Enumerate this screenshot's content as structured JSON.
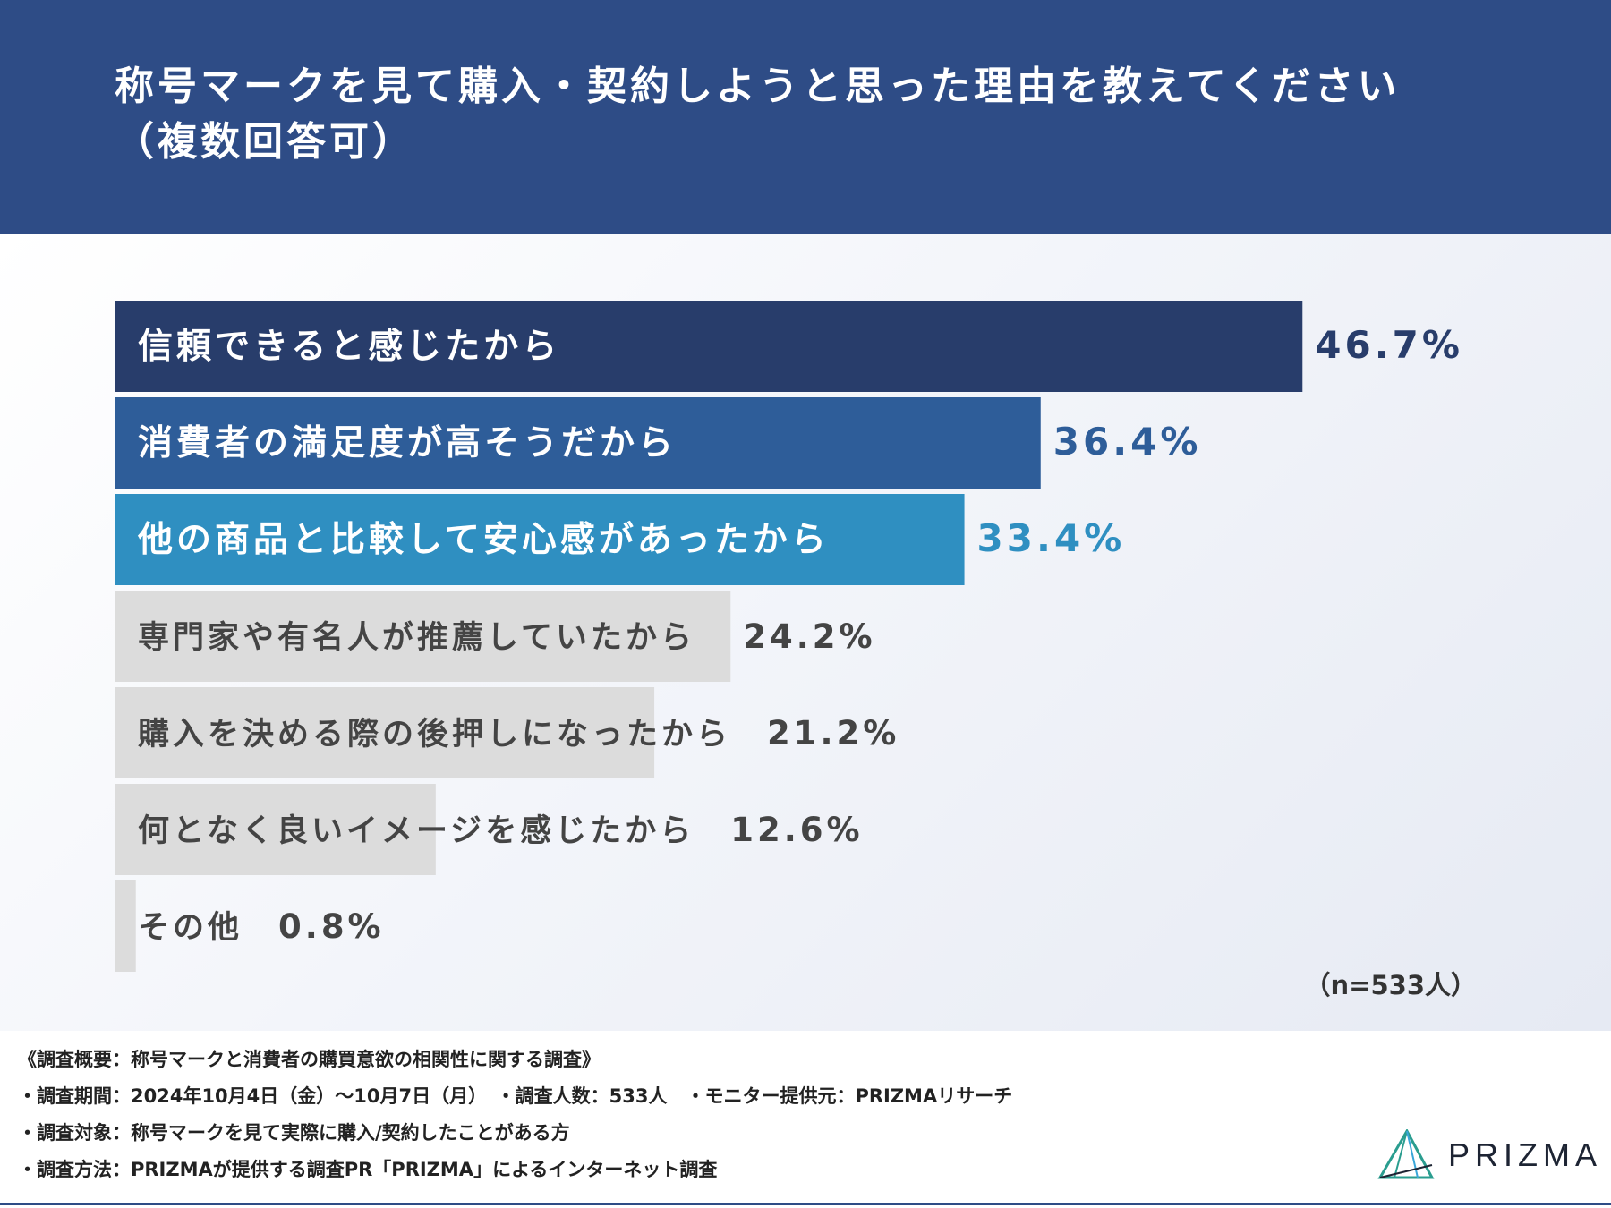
{
  "header": {
    "title": "称号マークを見て購入・契約しようと思った理由を教えてください\n（複数回答可）"
  },
  "chart_data": {
    "type": "bar",
    "orientation": "horizontal",
    "categories": [
      "信頼できると感じたから",
      "消費者の満足度が高そうだから",
      "他の商品と比較して安心感があったから",
      "専門家や有名人が推薦していたから",
      "購入を決める際の後押しになったから",
      "何となく良いイメージを感じたから",
      "その他"
    ],
    "values": [
      46.7,
      36.4,
      33.4,
      24.2,
      21.2,
      12.6,
      0.8
    ],
    "value_labels": [
      "46.7%",
      "36.4%",
      "33.4%",
      "24.2%",
      "21.2%",
      "12.6%",
      "0.8%"
    ],
    "bar_colors": [
      "#283d6b",
      "#2e5d99",
      "#2f8fc1",
      "#dcdcdc",
      "#dcdcdc",
      "#dcdcdc",
      "#dcdcdc"
    ],
    "category_text_colors": [
      "#ffffff",
      "#ffffff",
      "#ffffff",
      "#444444",
      "#444444",
      "#444444",
      "#444444"
    ],
    "value_label_colors": [
      "#283d6b",
      "#2e5d99",
      "#2f8fc1",
      "#444444",
      "#444444",
      "#444444",
      "#444444"
    ],
    "xlim": [
      0,
      100
    ],
    "grid": false,
    "legend": "none"
  },
  "sample_note": "（n=533人）",
  "footer": {
    "lines": [
      "《調査概要：称号マークと消費者の購買意欲の相関性に関する調査》",
      "・調査期間：2024年10月4日（金）～10月7日（月）　・調査人数：533人　・モニター提供元：PRIZMAリサーチ",
      "・調査対象：称号マークを見て実際に購入/契約したことがある方",
      "・調査方法：PRIZMAが提供する調査PR「PRIZMA」によるインターネット調査"
    ],
    "logo_text": "PRIZMA"
  }
}
